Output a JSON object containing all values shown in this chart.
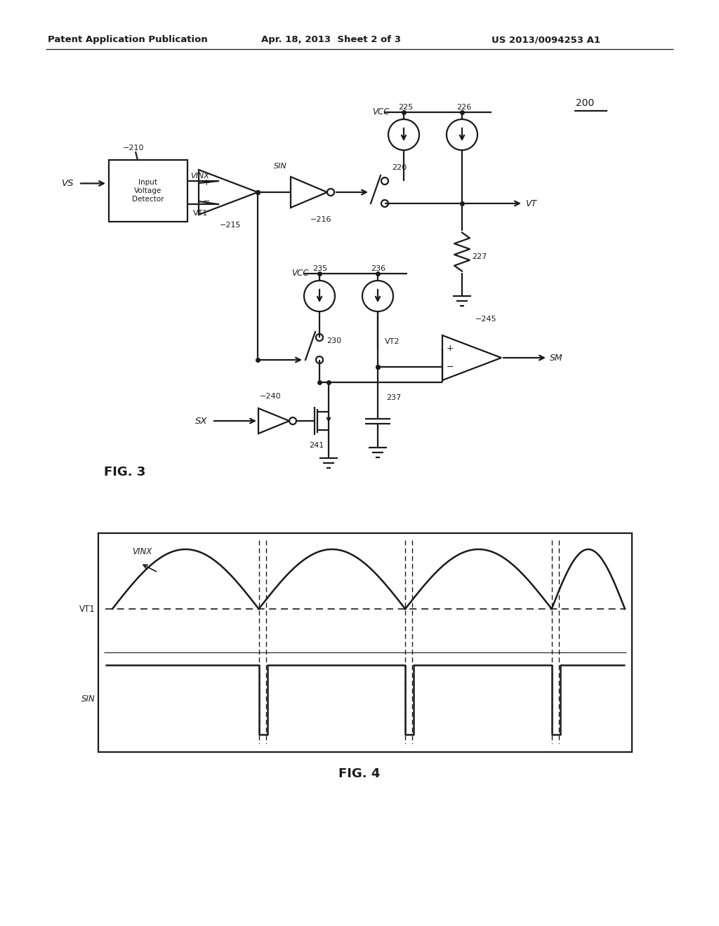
{
  "header_left": "Patent Application Publication",
  "header_mid": "Apr. 18, 2013  Sheet 2 of 3",
  "header_right": "US 2013/0094253 A1",
  "ref_200": "200",
  "fig3_label": "FIG. 3",
  "fig4_label": "FIG. 4",
  "bg": "#ffffff",
  "lc": "#1a1a1a",
  "tc": "#1a1a1a",
  "lw": 1.6
}
